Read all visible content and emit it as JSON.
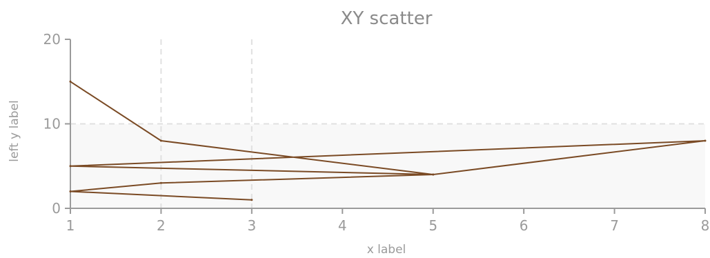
{
  "chart_data": {
    "type": "line",
    "title": "XY scatter",
    "xlabel": "x label",
    "ylabel": "left y label",
    "xlim": [
      1,
      8
    ],
    "ylim": [
      0,
      20
    ],
    "x_ticks": [
      1,
      2,
      3,
      4,
      5,
      6,
      7,
      8
    ],
    "y_ticks": [
      0,
      10,
      20
    ],
    "grid": true,
    "legend": "none",
    "series": [
      {
        "color": "#7a4a24",
        "points": [
          {
            "x": 1,
            "y": 15
          },
          {
            "x": 2,
            "y": 8
          },
          {
            "x": 5,
            "y": 4
          },
          {
            "x": 1,
            "y": 5
          },
          {
            "x": 8,
            "y": 8
          },
          {
            "x": 5,
            "y": 4
          },
          {
            "x": 2,
            "y": 3
          },
          {
            "x": 1,
            "y": 2
          },
          {
            "x": 3,
            "y": 1
          }
        ]
      }
    ]
  }
}
